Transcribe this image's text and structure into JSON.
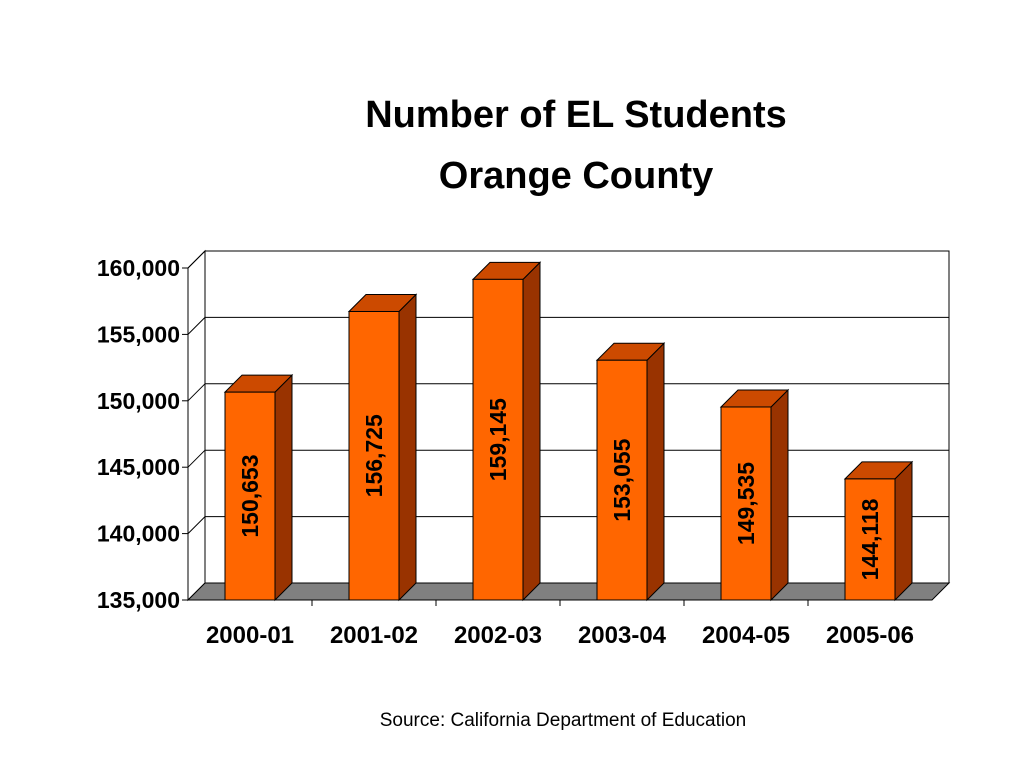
{
  "chart_data": {
    "type": "bar",
    "title": "Number of EL Students",
    "subtitle": "Orange County",
    "categories": [
      "2000-01",
      "2001-02",
      "2002-03",
      "2003-04",
      "2004-05",
      "2005-06"
    ],
    "values": [
      150653,
      156725,
      159145,
      153055,
      149535,
      144118
    ],
    "data_labels": [
      "150,653",
      "156,725",
      "159,145",
      "153,055",
      "149,535",
      "144,118"
    ],
    "yticks": [
      135000,
      140000,
      145000,
      150000,
      155000,
      160000
    ],
    "ytick_labels": [
      "135,000",
      "140,000",
      "145,000",
      "150,000",
      "155,000",
      "160,000"
    ],
    "ylim": [
      135000,
      160000
    ],
    "grid": true,
    "style": "3d-column",
    "colors": {
      "bar_front": "#ff6600",
      "bar_side": "#993300",
      "bar_top": "#cc4a00",
      "floor": "#808080",
      "grid": "#000000"
    }
  },
  "source": "Source: California Department of Education"
}
